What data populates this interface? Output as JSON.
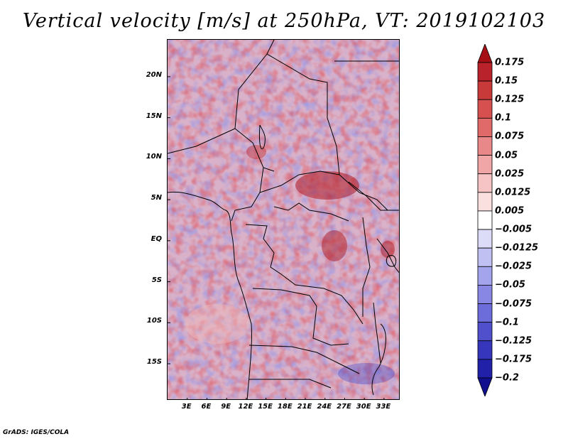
{
  "title": "Vertical velocity [m/s] at 250hPa, VT: 2019102103",
  "footer": "GrADS: IGES/COLA",
  "map": {
    "latitude_labels": [
      "20N",
      "15N",
      "10N",
      "5N",
      "EQ",
      "5S",
      "10S",
      "15S"
    ],
    "longitude_labels": [
      "3E",
      "6E",
      "9E",
      "12E",
      "15E",
      "18E",
      "21E",
      "24E",
      "27E",
      "30E",
      "33E"
    ],
    "latitude_range": [
      -19.5,
      24.5
    ],
    "longitude_range": [
      0.0,
      35.5
    ]
  },
  "colorbar": {
    "labels": [
      "0.175",
      "0.15",
      "0.125",
      "0.1",
      "0.075",
      "0.05",
      "0.025",
      "0.0125",
      "0.005",
      "-0.005",
      "-0.0125",
      "-0.025",
      "-0.05",
      "-0.075",
      "-0.1",
      "-0.125",
      "-0.175",
      "-0.2"
    ],
    "colors": [
      "#a50f15",
      "#b9222a",
      "#c83a3a",
      "#d65050",
      "#e06a6a",
      "#e88888",
      "#f0a6a6",
      "#f6c4c4",
      "#fbe0e0",
      "#ffffff",
      "#dcdcf8",
      "#c0c0f2",
      "#a4a4ec",
      "#8888e4",
      "#6c6cda",
      "#5050cc",
      "#3636bc",
      "#2020a8",
      "#10108e"
    ]
  },
  "colors": {
    "positive_accent": "#b9222a",
    "negative_accent": "#3636bc",
    "background": "#ffffff"
  }
}
